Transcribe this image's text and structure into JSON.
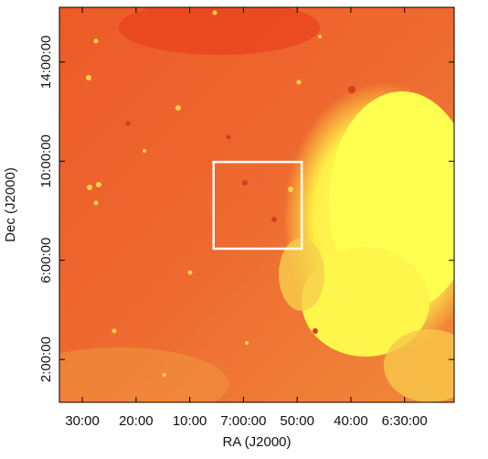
{
  "chart_data": {
    "type": "image",
    "xlabel": "RA (J2000)",
    "ylabel": "Dec (J2000)",
    "xlim": [
      7.5712,
      6.346
    ],
    "ylim": [
      0.27,
      16.21
    ],
    "xticks": [
      {
        "value": 7.5,
        "label": "30:00"
      },
      {
        "value": 7.3333,
        "label": "20:00"
      },
      {
        "value": 7.1667,
        "label": "10:00"
      },
      {
        "value": 7.0,
        "label": "7:00:00"
      },
      {
        "value": 6.8333,
        "label": "50:00"
      },
      {
        "value": 6.6667,
        "label": "40:00"
      },
      {
        "value": 6.5,
        "label": "6:30:00"
      }
    ],
    "yticks": [
      {
        "value": 2,
        "label": "2:00:00"
      },
      {
        "value": 6,
        "label": "6:00:00"
      },
      {
        "value": 10,
        "label": "10:00:00"
      },
      {
        "value": 14,
        "label": "14:00:00"
      }
    ],
    "box": {
      "x": [
        7.0926,
        6.819
      ],
      "y": [
        9.97,
        6.47
      ],
      "color": "#ffffff"
    }
  }
}
